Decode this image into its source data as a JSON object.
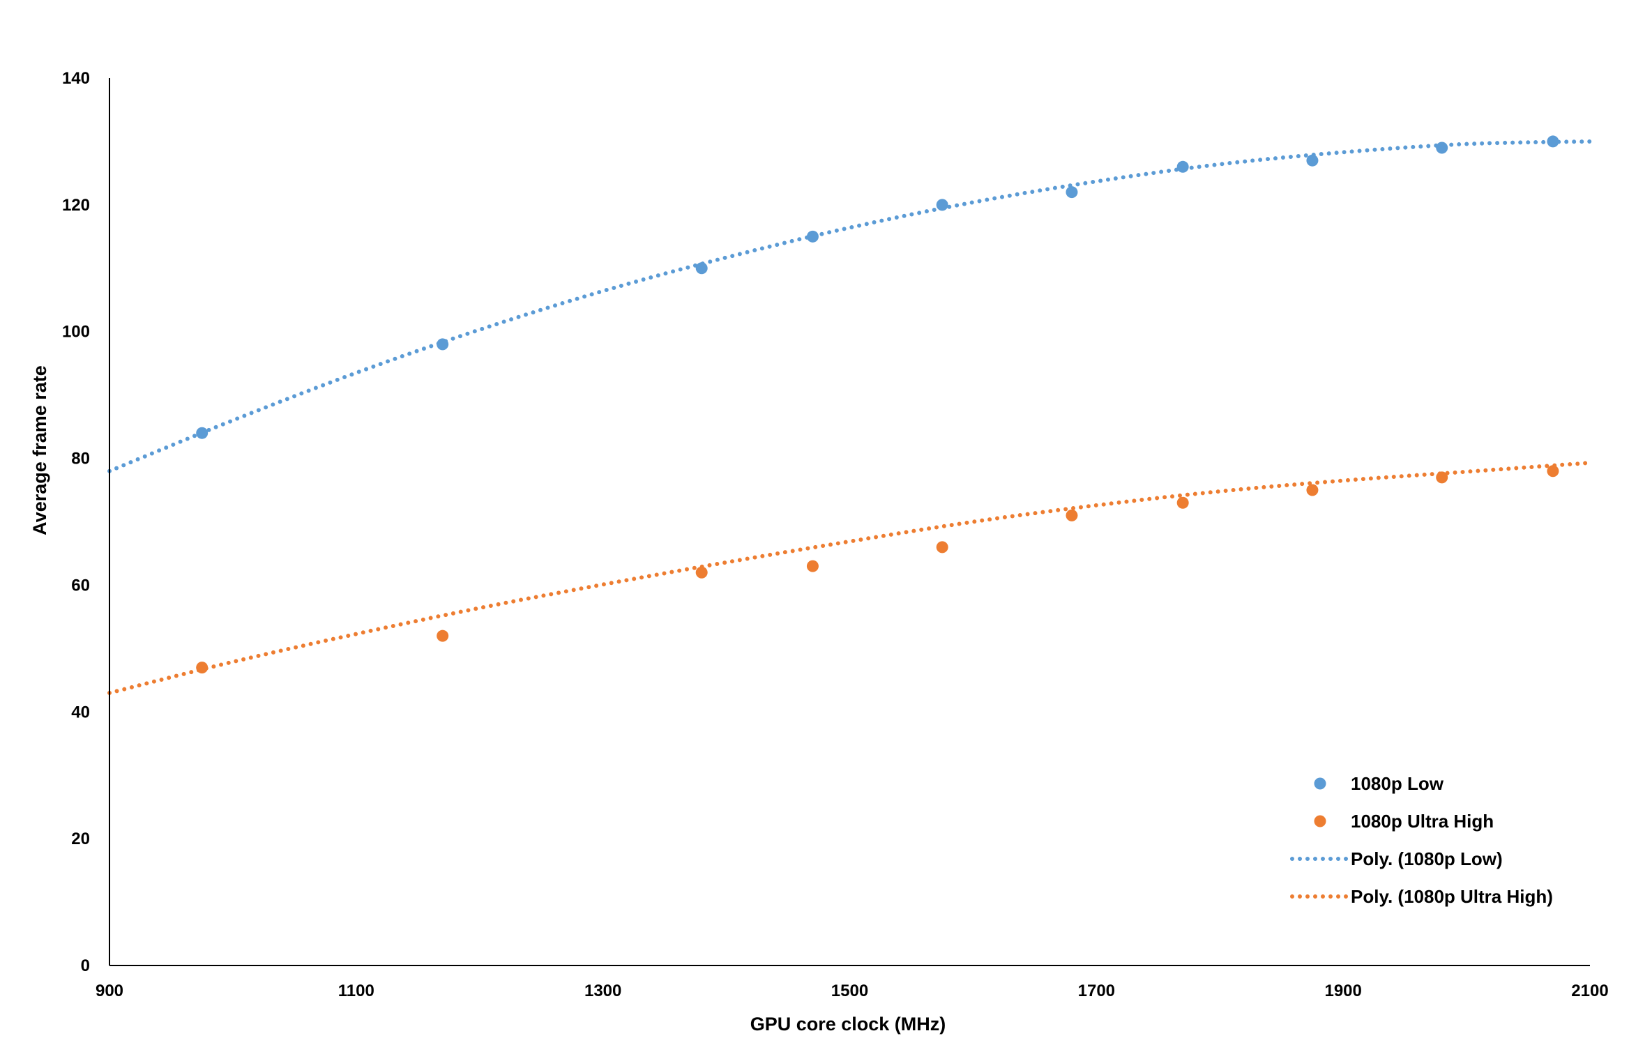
{
  "chart_data": {
    "type": "scatter",
    "title": "",
    "xlabel": "GPU core clock (MHz)",
    "ylabel": "Average frame rate",
    "xlim": [
      900,
      2100
    ],
    "ylim": [
      0,
      140
    ],
    "x_ticks": [
      "900",
      "1100",
      "1300",
      "1500",
      "1700",
      "1900",
      "2100"
    ],
    "y_ticks": [
      "0",
      "20",
      "40",
      "60",
      "80",
      "100",
      "120",
      "140"
    ],
    "grid": false,
    "legend_position": "bottom-right",
    "series": [
      {
        "name": "1080p Low",
        "kind": "points",
        "color": "#5B9BD5",
        "x": [
          975,
          1170,
          1380,
          1470,
          1575,
          1680,
          1770,
          1875,
          1980,
          2070
        ],
        "y": [
          84,
          98,
          110,
          115,
          120,
          122,
          126,
          127,
          129,
          130
        ]
      },
      {
        "name": "1080p Ultra High",
        "kind": "points",
        "color": "#ED7D31",
        "x": [
          975,
          1170,
          1380,
          1470,
          1575,
          1680,
          1770,
          1875,
          1980,
          2070
        ],
        "y": [
          47,
          52,
          62,
          63,
          66,
          71,
          73,
          75,
          77,
          78
        ]
      },
      {
        "name": "Poly. (1080p Low)",
        "kind": "trendline",
        "line_style": "dotted",
        "color": "#5B9BD5",
        "x": [
          900,
          1000,
          1100,
          1200,
          1300,
          1400,
          1500,
          1600,
          1700,
          1800,
          1900,
          2000,
          2100
        ],
        "y": [
          78,
          86,
          93.5,
          100.3,
          106.4,
          111.7,
          116.4,
          120.4,
          123.7,
          126.4,
          128.3,
          129.6,
          130
        ]
      },
      {
        "name": "Poly. (1080p Ultra High)",
        "kind": "trendline",
        "line_style": "dotted",
        "color": "#ED7D31",
        "x": [
          900,
          1000,
          1100,
          1200,
          1300,
          1400,
          1500,
          1600,
          1700,
          1800,
          1900,
          2000,
          2100
        ],
        "y": [
          43,
          47.9,
          52.3,
          56.4,
          60.1,
          63.6,
          66.9,
          70,
          72.6,
          74.8,
          76.5,
          77.9,
          79.3
        ]
      }
    ]
  }
}
